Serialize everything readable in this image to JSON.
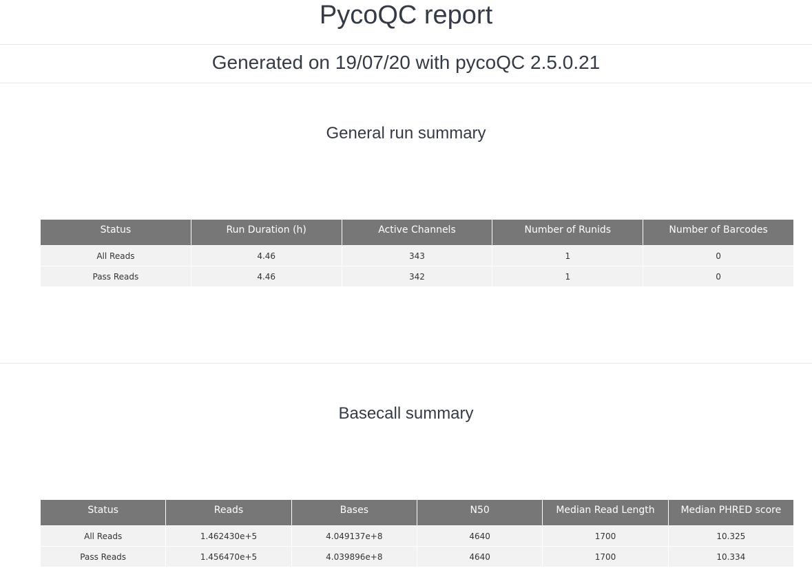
{
  "header": {
    "title": "PycoQC report",
    "subtitle": "Generated on 19/07/20 with pycoQC 2.5.0.21"
  },
  "sections": [
    {
      "title": "General run summary",
      "table": {
        "columns": [
          "Status",
          "Run Duration (h)",
          "Active Channels",
          "Number of Runids",
          "Number of Barcodes"
        ],
        "rows": [
          [
            "All Reads",
            "4.46",
            "343",
            "1",
            "0"
          ],
          [
            "Pass Reads",
            "4.46",
            "342",
            "1",
            "0"
          ]
        ]
      }
    },
    {
      "title": "Basecall summary",
      "table": {
        "columns": [
          "Status",
          "Reads",
          "Bases",
          "N50",
          "Median Read Length",
          "Median PHRED score"
        ],
        "rows": [
          [
            "All Reads",
            "1.462430e+5",
            "4.049137e+8",
            "4640",
            "1700",
            "10.325"
          ],
          [
            "Pass Reads",
            "1.456470e+5",
            "4.039896e+8",
            "4640",
            "1700",
            "10.334"
          ]
        ]
      }
    }
  ]
}
